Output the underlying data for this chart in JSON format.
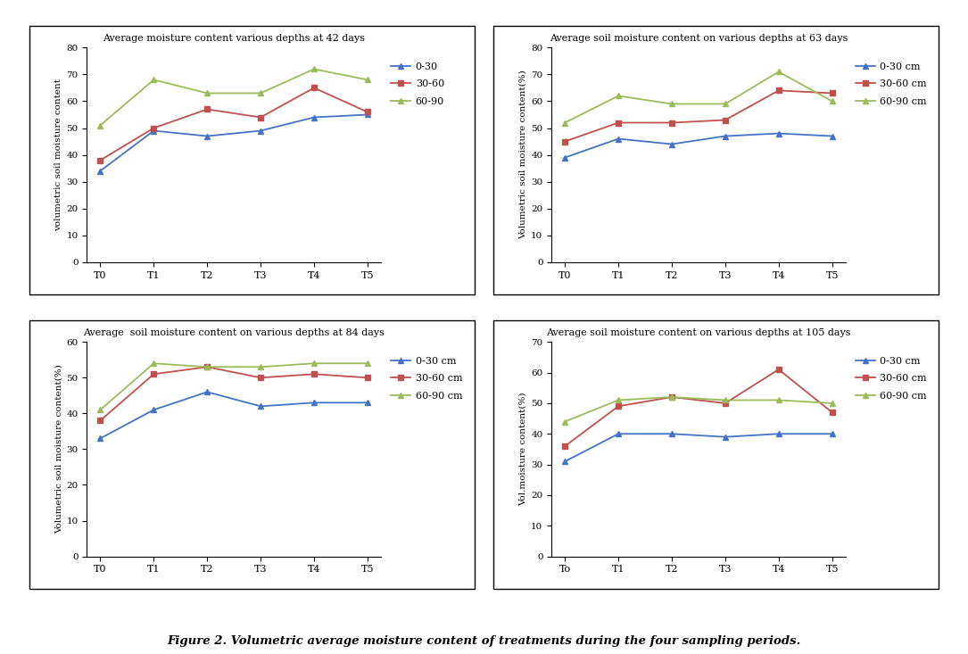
{
  "x_labels": [
    "T0",
    "T1",
    "T2",
    "T3",
    "T4",
    "T5"
  ],
  "x_labels_p4": [
    "To",
    "T1",
    "T2",
    "T3",
    "T4",
    "T5"
  ],
  "plot1": {
    "title": "Average moisture content various depths at 42 days",
    "ylabel": "volumetric soil moisture content",
    "ylim": [
      0,
      80
    ],
    "yticks": [
      0,
      10,
      20,
      30,
      40,
      50,
      60,
      70,
      80
    ],
    "d0_30": [
      34,
      49,
      47,
      49,
      54,
      55
    ],
    "d30_60": [
      38,
      50,
      57,
      54,
      65,
      56
    ],
    "d60_90": [
      51,
      68,
      63,
      63,
      72,
      68
    ],
    "legend_labels": [
      "0-30",
      "30-60",
      "60-90"
    ]
  },
  "plot2": {
    "title": "Average soil moisture content on various depths at 63 days",
    "ylabel": "Volumetric soil moisture content(%)",
    "ylim": [
      0,
      80
    ],
    "yticks": [
      0,
      10,
      20,
      30,
      40,
      50,
      60,
      70,
      80
    ],
    "d0_30": [
      39,
      46,
      44,
      47,
      48,
      47
    ],
    "d30_60": [
      45,
      52,
      52,
      53,
      64,
      63
    ],
    "d60_90": [
      52,
      62,
      59,
      59,
      71,
      60
    ],
    "legend_labels": [
      "0-30 cm",
      "30-60 cm",
      "60-90 cm"
    ]
  },
  "plot3": {
    "title": "Average  soil moisture content on various depths at 84 days",
    "ylabel": "Volumetric soil moisture content(%)",
    "ylim": [
      0,
      60
    ],
    "yticks": [
      0,
      10,
      20,
      30,
      40,
      50,
      60
    ],
    "d0_30": [
      33,
      41,
      46,
      42,
      43,
      43
    ],
    "d30_60": [
      38,
      51,
      53,
      50,
      51,
      50
    ],
    "d60_90": [
      41,
      54,
      53,
      53,
      54,
      54
    ],
    "legend_labels": [
      "0-30 cm",
      "30-60 cm",
      "60-90 cm"
    ]
  },
  "plot4": {
    "title": "Average soil moisture content on various depths at 105 days",
    "ylabel": "Vol.moisture content(%)",
    "ylim": [
      0,
      70
    ],
    "yticks": [
      0,
      10,
      20,
      30,
      40,
      50,
      60,
      70
    ],
    "d0_30": [
      31,
      40,
      40,
      39,
      40,
      40
    ],
    "d30_60": [
      36,
      49,
      52,
      50,
      61,
      47
    ],
    "d60_90": [
      44,
      51,
      52,
      51,
      51,
      50
    ],
    "legend_labels": [
      "0-30 cm",
      "30-60 cm",
      "60-90 cm"
    ]
  },
  "colors": {
    "blue": "#4472C4",
    "red": "#C0504D",
    "green": "#9BBB59"
  },
  "figure_caption": "Figure 2. Volumetric average moisture content of treatments during the four sampling periods."
}
